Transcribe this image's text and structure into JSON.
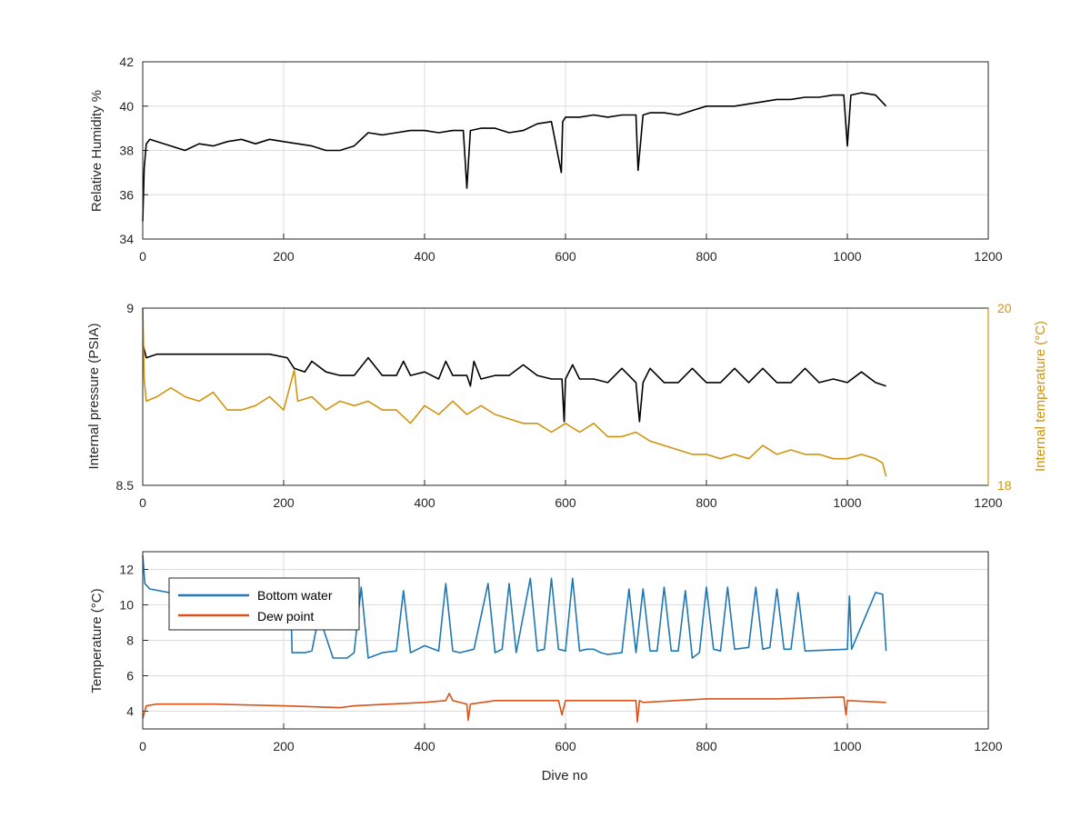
{
  "colors": {
    "black_series": "#000000",
    "internal_temperature": "#d09410",
    "bottom_water": "#1f77b4",
    "dew_point": "#d95319",
    "grid": "#dcdcdc",
    "axis": "#262626"
  },
  "chart_data": [
    {
      "type": "line",
      "title": "",
      "xlabel": "",
      "ylabel": "Relative Humidity %",
      "xlim": [
        0,
        1200
      ],
      "ylim": [
        34,
        42
      ],
      "x_ticks": [
        "0",
        "200",
        "400",
        "600",
        "800",
        "1000",
        "1200"
      ],
      "y_ticks": [
        "34",
        "36",
        "38",
        "40",
        "42"
      ],
      "grid": true,
      "series": [
        {
          "color": "#000000",
          "x": [
            0,
            2,
            5,
            10,
            20,
            40,
            60,
            80,
            100,
            120,
            140,
            160,
            180,
            200,
            220,
            240,
            260,
            280,
            300,
            320,
            340,
            360,
            380,
            400,
            420,
            440,
            455,
            460,
            465,
            480,
            500,
            520,
            540,
            560,
            580,
            594,
            596,
            600,
            620,
            640,
            660,
            680,
            700,
            703,
            710,
            720,
            740,
            760,
            780,
            800,
            820,
            840,
            860,
            880,
            900,
            920,
            940,
            960,
            980,
            995,
            1000,
            1005,
            1020,
            1040,
            1055
          ],
          "y": [
            34.8,
            37.2,
            38.3,
            38.5,
            38.4,
            38.2,
            38.0,
            38.3,
            38.2,
            38.4,
            38.5,
            38.3,
            38.5,
            38.4,
            38.3,
            38.2,
            38.0,
            38.0,
            38.2,
            38.8,
            38.7,
            38.8,
            38.9,
            38.9,
            38.8,
            38.9,
            38.9,
            36.3,
            38.9,
            39.0,
            39.0,
            38.8,
            38.9,
            39.2,
            39.3,
            37.0,
            39.3,
            39.5,
            39.5,
            39.6,
            39.5,
            39.6,
            39.6,
            37.1,
            39.6,
            39.7,
            39.7,
            39.6,
            39.8,
            40.0,
            40.0,
            40.0,
            40.1,
            40.2,
            40.3,
            40.3,
            40.4,
            40.4,
            40.5,
            40.5,
            38.2,
            40.5,
            40.6,
            40.5,
            40.0
          ]
        }
      ]
    },
    {
      "type": "line",
      "title": "",
      "xlabel": "",
      "ylabel": "Internal pressure (PSIA)",
      "ylabel_right": "Internal temperature (°C)",
      "xlim": [
        0,
        1200
      ],
      "ylim": [
        8.5,
        9
      ],
      "ylim_right": [
        18,
        20
      ],
      "x_ticks": [
        "0",
        "200",
        "400",
        "600",
        "800",
        "1000",
        "1200"
      ],
      "y_ticks": [
        "8.5",
        "9"
      ],
      "y_ticks_right": [
        "18",
        "20"
      ],
      "grid": true,
      "series": [
        {
          "axis": "left",
          "color": "#000000",
          "x": [
            0,
            5,
            20,
            60,
            100,
            140,
            180,
            205,
            215,
            230,
            240,
            260,
            280,
            300,
            320,
            340,
            360,
            370,
            380,
            400,
            420,
            430,
            440,
            460,
            465,
            470,
            480,
            500,
            520,
            540,
            560,
            580,
            595,
            598,
            600,
            610,
            620,
            640,
            660,
            680,
            700,
            705,
            710,
            720,
            740,
            760,
            780,
            800,
            820,
            840,
            860,
            880,
            900,
            920,
            940,
            960,
            980,
            1000,
            1020,
            1040,
            1055
          ],
          "y": [
            8.9,
            8.86,
            8.87,
            8.87,
            8.87,
            8.87,
            8.87,
            8.86,
            8.83,
            8.82,
            8.85,
            8.82,
            8.81,
            8.81,
            8.86,
            8.81,
            8.81,
            8.85,
            8.81,
            8.82,
            8.8,
            8.85,
            8.81,
            8.81,
            8.78,
            8.85,
            8.8,
            8.81,
            8.81,
            8.84,
            8.81,
            8.8,
            8.8,
            8.68,
            8.8,
            8.84,
            8.8,
            8.8,
            8.79,
            8.83,
            8.79,
            8.68,
            8.79,
            8.83,
            8.79,
            8.79,
            8.83,
            8.79,
            8.79,
            8.83,
            8.79,
            8.83,
            8.79,
            8.79,
            8.83,
            8.79,
            8.8,
            8.79,
            8.82,
            8.79,
            8.78
          ]
        },
        {
          "axis": "right",
          "color": "#d09410",
          "x": [
            0,
            2,
            5,
            20,
            40,
            60,
            80,
            100,
            120,
            140,
            160,
            180,
            200,
            215,
            220,
            240,
            260,
            280,
            300,
            320,
            340,
            360,
            380,
            400,
            420,
            440,
            460,
            480,
            500,
            520,
            540,
            560,
            580,
            600,
            620,
            640,
            660,
            680,
            700,
            720,
            740,
            760,
            780,
            800,
            820,
            840,
            860,
            880,
            900,
            920,
            940,
            960,
            980,
            1000,
            1020,
            1040,
            1050,
            1055
          ],
          "y": [
            20,
            19.2,
            18.95,
            19.0,
            19.1,
            19.0,
            18.95,
            19.05,
            18.85,
            18.85,
            18.9,
            19.0,
            18.85,
            19.3,
            18.95,
            19.0,
            18.85,
            18.95,
            18.9,
            18.95,
            18.85,
            18.85,
            18.7,
            18.9,
            18.8,
            18.95,
            18.8,
            18.9,
            18.8,
            18.75,
            18.7,
            18.7,
            18.6,
            18.7,
            18.6,
            18.7,
            18.55,
            18.55,
            18.6,
            18.5,
            18.45,
            18.4,
            18.35,
            18.35,
            18.3,
            18.35,
            18.3,
            18.45,
            18.35,
            18.4,
            18.35,
            18.35,
            18.3,
            18.3,
            18.35,
            18.3,
            18.25,
            18.1
          ]
        }
      ]
    },
    {
      "type": "line",
      "title": "",
      "xlabel": "Dive no",
      "ylabel": "Temperature (°C)",
      "xlim": [
        0,
        1200
      ],
      "ylim": [
        3,
        13
      ],
      "x_ticks": [
        "0",
        "200",
        "400",
        "600",
        "800",
        "1000",
        "1200"
      ],
      "y_ticks": [
        "4",
        "6",
        "8",
        "10",
        "12"
      ],
      "grid": true,
      "legend": "top-left",
      "series": [
        {
          "name": "Bottom water",
          "color": "#1f77b4",
          "x": [
            0,
            3,
            10,
            50,
            100,
            150,
            200,
            210,
            212,
            230,
            240,
            250,
            270,
            290,
            300,
            310,
            320,
            340,
            360,
            370,
            380,
            390,
            400,
            420,
            430,
            440,
            450,
            470,
            490,
            500,
            510,
            520,
            530,
            550,
            560,
            570,
            580,
            590,
            600,
            610,
            620,
            630,
            640,
            650,
            660,
            680,
            690,
            700,
            710,
            720,
            730,
            740,
            750,
            760,
            770,
            780,
            790,
            800,
            810,
            820,
            830,
            840,
            860,
            870,
            880,
            890,
            900,
            910,
            920,
            930,
            940,
            1000,
            1003,
            1006,
            1040,
            1050,
            1055
          ],
          "y": [
            12.8,
            11.2,
            10.9,
            10.6,
            10.6,
            10.5,
            10.5,
            10.2,
            7.3,
            7.3,
            7.4,
            9.4,
            7.0,
            7.0,
            7.3,
            11.0,
            7.0,
            7.3,
            7.4,
            10.8,
            7.3,
            7.5,
            7.7,
            7.4,
            11.2,
            7.4,
            7.3,
            7.5,
            11.2,
            7.3,
            7.5,
            11.2,
            7.3,
            11.5,
            7.4,
            7.5,
            11.5,
            7.5,
            7.4,
            11.5,
            7.4,
            7.5,
            7.5,
            7.3,
            7.2,
            7.3,
            10.9,
            7.3,
            10.9,
            7.4,
            7.4,
            11.0,
            7.4,
            7.4,
            10.8,
            7.0,
            7.3,
            11.0,
            7.5,
            7.4,
            11.0,
            7.5,
            7.6,
            11.0,
            7.5,
            7.6,
            10.9,
            7.5,
            7.5,
            10.7,
            7.4,
            7.5,
            10.5,
            7.5,
            10.7,
            10.6,
            7.4
          ]
        },
        {
          "name": "Dew point",
          "color": "#d95319",
          "x": [
            0,
            5,
            20,
            100,
            200,
            280,
            300,
            400,
            430,
            435,
            440,
            460,
            462,
            465,
            500,
            590,
            595,
            600,
            700,
            702,
            705,
            710,
            800,
            900,
            995,
            998,
            1000,
            1055
          ],
          "y": [
            3.6,
            4.3,
            4.4,
            4.4,
            4.3,
            4.2,
            4.3,
            4.5,
            4.6,
            5.0,
            4.6,
            4.4,
            3.5,
            4.4,
            4.6,
            4.6,
            3.8,
            4.6,
            4.6,
            3.4,
            4.6,
            4.5,
            4.7,
            4.7,
            4.8,
            3.8,
            4.6,
            4.5
          ]
        }
      ]
    }
  ]
}
